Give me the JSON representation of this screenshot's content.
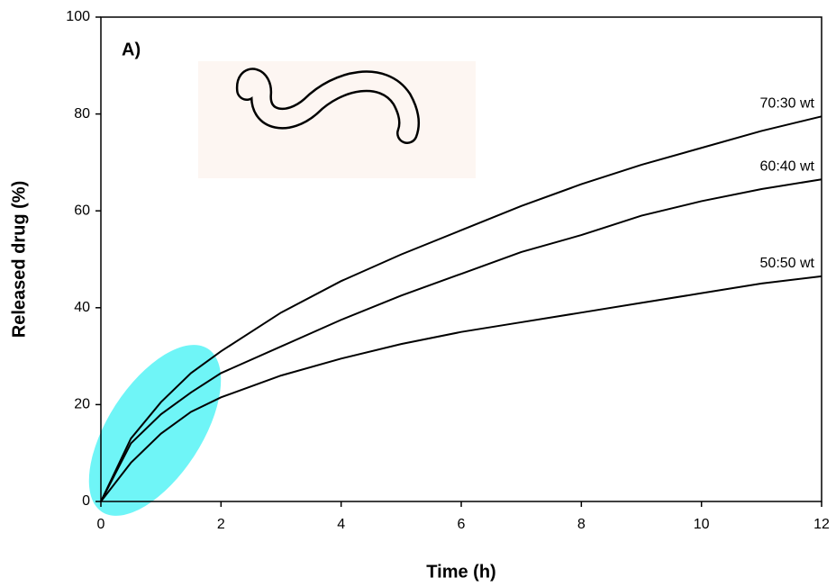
{
  "chart_data": {
    "type": "line",
    "panel_label": "A)",
    "xlabel": "Time (h)",
    "ylabel": "Released drug (%)",
    "x": [
      0,
      0.5,
      1,
      1.5,
      2,
      3,
      4,
      5,
      6,
      7,
      8,
      9,
      10,
      11,
      12
    ],
    "series": [
      {
        "name": "70:30 wt",
        "color": "#000000",
        "values": [
          0,
          13,
          20.5,
          26.5,
          31,
          39,
          45.5,
          51,
          56,
          61,
          65.5,
          69.5,
          73,
          76.5,
          79.5
        ]
      },
      {
        "name": "60:40 wt",
        "color": "#000000",
        "values": [
          0,
          12,
          18,
          22.5,
          26.5,
          32,
          37.5,
          42.5,
          47,
          51.5,
          55,
          59,
          62,
          64.5,
          66.5
        ]
      },
      {
        "name": "50:50 wt",
        "color": "#000000",
        "values": [
          0,
          8,
          14,
          18.5,
          21.5,
          26,
          29.5,
          32.5,
          35,
          37,
          39,
          41,
          43,
          45,
          46.5
        ]
      }
    ],
    "xlim": [
      0,
      12
    ],
    "xticks": [
      0,
      2,
      4,
      6,
      8,
      10,
      12
    ],
    "ylim": [
      0,
      100
    ],
    "yticks": [
      0,
      20,
      40,
      60,
      80,
      100
    ],
    "grid": false
  }
}
